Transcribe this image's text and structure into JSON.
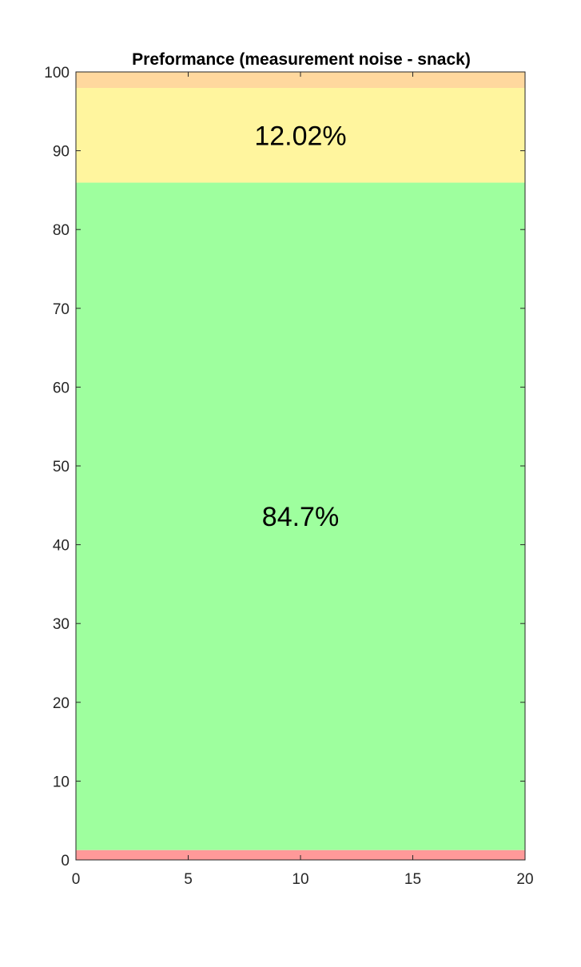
{
  "chart_data": {
    "type": "bar",
    "stacked": true,
    "title": "Preformance (measurement noise - snack)",
    "xlim": [
      0,
      20
    ],
    "ylim": [
      0,
      100
    ],
    "x_ticks": [
      0,
      5,
      10,
      15,
      20
    ],
    "y_ticks": [
      0,
      10,
      20,
      30,
      40,
      50,
      60,
      70,
      80,
      90,
      100
    ],
    "grid": false,
    "legend": "none",
    "segments": [
      {
        "value": 1.25,
        "label": "1.25%",
        "color": "#ff9999",
        "label_visible": false
      },
      {
        "value": 84.7,
        "label": "84.7%",
        "color": "#9eff9e",
        "label_visible": true
      },
      {
        "value": 12.02,
        "label": "12.02%",
        "color": "#fff59e",
        "label_visible": true
      },
      {
        "value": 2.03,
        "label": "2.03%",
        "color": "#ffd89e",
        "label_visible": false
      }
    ],
    "label_x": 10
  }
}
